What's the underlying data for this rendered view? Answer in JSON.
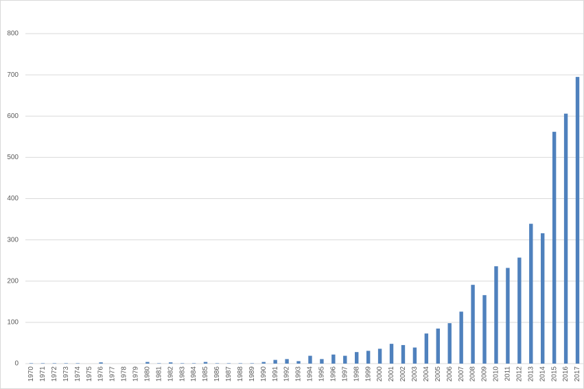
{
  "chart_data": {
    "type": "bar",
    "categories": [
      "1970",
      "1971",
      "1972",
      "1973",
      "1974",
      "1975",
      "1976",
      "1977",
      "1978",
      "1979",
      "1980",
      "1981",
      "1982",
      "1983",
      "1984",
      "1985",
      "1986",
      "1987",
      "1988",
      "1989",
      "1990",
      "1991",
      "1992",
      "1993",
      "1994",
      "1995",
      "1996",
      "1997",
      "1998",
      "1999",
      "2000",
      "2001",
      "2002",
      "2003",
      "2004",
      "2005",
      "2006",
      "2007",
      "2008",
      "2009",
      "2010",
      "2011",
      "2012",
      "2013",
      "2014",
      "2015",
      "2016",
      "2017"
    ],
    "values": [
      1,
      1,
      1,
      1,
      1,
      0,
      3,
      0,
      0,
      0,
      4,
      1,
      3,
      1,
      1,
      4,
      1,
      1,
      1,
      1,
      4,
      9,
      11,
      6,
      19,
      11,
      22,
      19,
      28,
      31,
      36,
      48,
      45,
      39,
      73,
      85,
      98,
      126,
      191,
      166,
      236,
      232,
      257,
      339,
      316,
      562,
      606,
      695
    ],
    "color": "#4f81bd",
    "ylim": [
      0,
      800
    ],
    "yticks": [
      0,
      100,
      200,
      300,
      400,
      500,
      600,
      700,
      800
    ],
    "grid": true
  }
}
